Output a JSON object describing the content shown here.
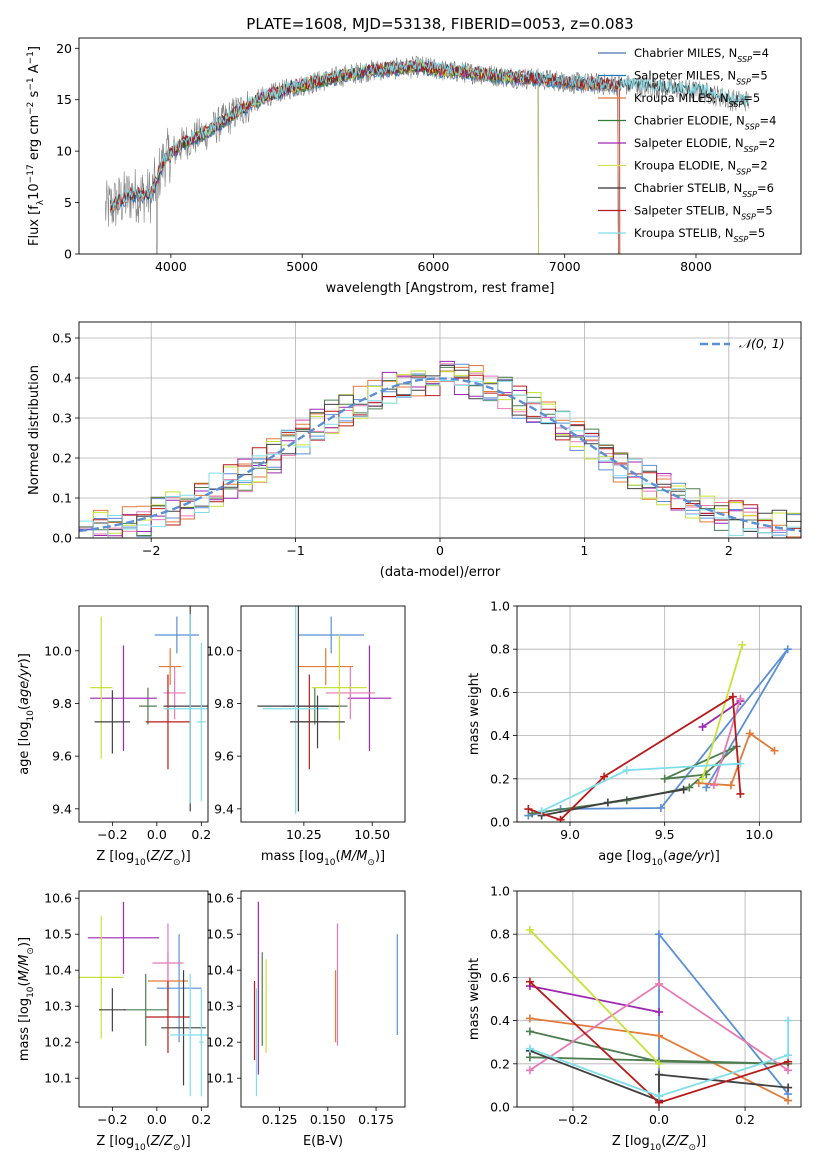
{
  "figure_title": "PLATE=1608, MJD=53138, FIBERID=0053, z=0.083",
  "colors": {
    "chabrier_miles": "#4c72b0",
    "salpeter_miles": "#1f77b4",
    "kroupa_miles": "#e07b39",
    "chabrier_elodie": "#2e7d32",
    "salpeter_elodie": "#9c27b0",
    "kroupa_elodie": "#d4e157",
    "chabrier_stelib": "#333333",
    "salpeter_stelib": "#b71c1c",
    "kroupa_stelib": "#80deea",
    "data": "#808080",
    "normal": "#5b8fd6",
    "panel_blue": "#5b8fd6",
    "panel_orange": "#e07b39",
    "panel_green": "#4e7d50",
    "panel_purple": "#9c27b0",
    "panel_pink": "#e67ab3",
    "panel_lime": "#c7e23b",
    "panel_dark": "#404040",
    "panel_red": "#b71c1c",
    "panel_cyan": "#80deea",
    "grid": "#b0b0b0"
  },
  "chart_data": [
    {
      "type": "line",
      "title": "PLATE=1608, MJD=53138, FIBERID=0053, z=0.083",
      "xlabel": "wavelength [Angstrom, rest frame]",
      "ylabel": "Flux [f_λ 10^-17 erg cm^-2 s^-1 A^-1]",
      "xlim": [
        3300,
        8800
      ],
      "ylim": [
        0,
        21
      ],
      "xticks": [
        "4000",
        "5000",
        "6000",
        "7000",
        "8000"
      ],
      "yticks": [
        "0",
        "5",
        "10",
        "15",
        "20"
      ],
      "grid": false,
      "legend": "right",
      "legend_entries": [
        {
          "base": "Chabrier MILES, N",
          "sub": "SSP",
          "tail": "=4"
        },
        {
          "base": "Salpeter MILES, N",
          "sub": "SSP",
          "tail": "=5"
        },
        {
          "base": "Kroupa MILES, N",
          "sub": "SSP",
          "tail": "=5"
        },
        {
          "base": "Chabrier ELODIE, N",
          "sub": "SSP",
          "tail": "=4"
        },
        {
          "base": "Salpeter ELODIE, N",
          "sub": "SSP",
          "tail": "=2"
        },
        {
          "base": "Kroupa ELODIE, N",
          "sub": "SSP",
          "tail": "=2"
        },
        {
          "base": "Chabrier STELIB, N",
          "sub": "SSP",
          "tail": "=6"
        },
        {
          "base": "Salpeter STELIB, N",
          "sub": "SSP",
          "tail": "=5"
        },
        {
          "base": "Kroupa STELIB, N",
          "sub": "SSP",
          "tail": "=5"
        }
      ],
      "continuum": [
        [
          3500,
          4.3
        ],
        [
          3700,
          5.8
        ],
        [
          3850,
          5.7
        ],
        [
          3950,
          9.2
        ],
        [
          4100,
          10.8
        ],
        [
          4300,
          12.0
        ],
        [
          4500,
          13.8
        ],
        [
          4700,
          15.2
        ],
        [
          4900,
          16.1
        ],
        [
          5100,
          16.7
        ],
        [
          5300,
          17.3
        ],
        [
          5500,
          17.8
        ],
        [
          5700,
          18.0
        ],
        [
          5900,
          18.2
        ],
        [
          6100,
          17.8
        ],
        [
          6300,
          17.6
        ],
        [
          6500,
          17.3
        ],
        [
          6700,
          17.1
        ],
        [
          6900,
          16.9
        ],
        [
          7100,
          16.6
        ],
        [
          7300,
          16.5
        ],
        [
          7500,
          16.4
        ],
        [
          7700,
          16.2
        ],
        [
          7900,
          16.0
        ],
        [
          8100,
          15.6
        ],
        [
          8300,
          14.9
        ]
      ]
    },
    {
      "type": "line",
      "xlabel": "(data-model)/error",
      "ylabel": "Normed distribution",
      "xlim": [
        -2.5,
        2.5
      ],
      "ylim": [
        0,
        0.54
      ],
      "xticks": [
        "−2",
        "−1",
        "0",
        "1",
        "2"
      ],
      "yticks": [
        "0.0",
        "0.1",
        "0.2",
        "0.3",
        "0.4",
        "0.5"
      ],
      "grid": true,
      "legend": "top-right",
      "legend_label": "𝒩(0, 1)",
      "histogram_bin_width": 0.1
    },
    {
      "type": "scatter",
      "xlabel": "Z [log10(Z/Z⊙)]",
      "ylabel": "age [log10(age/yr)]",
      "xlim": [
        -0.35,
        0.23
      ],
      "ylim": [
        9.35,
        10.17
      ],
      "xticks": [
        "−0.2",
        "0.0",
        "0.2"
      ],
      "yticks": [
        "9.4",
        "9.6",
        "9.8",
        "10.0"
      ],
      "grid": false,
      "points": [
        {
          "x": 0.09,
          "y": 10.06,
          "xerr": 0.1,
          "yerr": 0.07,
          "color": "panel_blue"
        },
        {
          "x": 0.06,
          "y": 9.94,
          "xerr": 0.05,
          "yerr": 0.07,
          "color": "panel_orange"
        },
        {
          "x": -0.04,
          "y": 9.79,
          "xerr": 0.04,
          "yerr": 0.07,
          "color": "panel_green"
        },
        {
          "x": -0.15,
          "y": 9.82,
          "xerr": 0.15,
          "yerr": 0.2,
          "color": "panel_purple"
        },
        {
          "x": 0.08,
          "y": 9.84,
          "xerr": 0.05,
          "yerr": 0.1,
          "color": "panel_pink"
        },
        {
          "x": -0.25,
          "y": 9.86,
          "xerr": 0.05,
          "yerr": 0.27,
          "color": "panel_lime"
        },
        {
          "x": 0.15,
          "y": 9.79,
          "xerr": 0.12,
          "yerr": 0.4,
          "color": "panel_dark"
        },
        {
          "x": 0.05,
          "y": 9.73,
          "xerr": 0.1,
          "yerr": 0.18,
          "color": "panel_red"
        },
        {
          "x": 0.15,
          "y": 9.78,
          "xerr": 0.12,
          "yerr": 0.36,
          "color": "panel_cyan"
        },
        {
          "x": -0.2,
          "y": 9.73,
          "xerr": 0.08,
          "yerr": 0.12,
          "color": "panel_dark"
        },
        {
          "x": 0.2,
          "y": 9.73,
          "xerr": 0.02,
          "yerr": 0.3,
          "color": "panel_cyan"
        }
      ]
    },
    {
      "type": "scatter",
      "xlabel": "mass [log10(M/M⊙)]",
      "ylabel": "",
      "xlim": [
        10.02,
        10.62
      ],
      "ylim": [
        9.35,
        10.17
      ],
      "xticks": [
        "10.25",
        "10.50"
      ],
      "yticks": [
        "9.4",
        "9.6",
        "9.8",
        "10.0"
      ],
      "grid": false,
      "points": [
        {
          "x": 10.35,
          "y": 10.06,
          "xerr": 0.12,
          "yerr": 0.07,
          "color": "panel_blue"
        },
        {
          "x": 10.33,
          "y": 9.94,
          "xerr": 0.1,
          "yerr": 0.07,
          "color": "panel_orange"
        },
        {
          "x": 10.29,
          "y": 9.79,
          "xerr": 0.12,
          "yerr": 0.07,
          "color": "panel_green"
        },
        {
          "x": 10.49,
          "y": 9.82,
          "xerr": 0.08,
          "yerr": 0.2,
          "color": "panel_purple"
        },
        {
          "x": 10.42,
          "y": 9.84,
          "xerr": 0.09,
          "yerr": 0.1,
          "color": "panel_pink"
        },
        {
          "x": 10.38,
          "y": 9.86,
          "xerr": 0.1,
          "yerr": 0.2,
          "color": "panel_lime"
        },
        {
          "x": 10.23,
          "y": 9.79,
          "xerr": 0.15,
          "yerr": 0.4,
          "color": "panel_dark"
        },
        {
          "x": 10.27,
          "y": 9.73,
          "xerr": 0.07,
          "yerr": 0.18,
          "color": "panel_red"
        },
        {
          "x": 10.22,
          "y": 9.78,
          "xerr": 0.12,
          "yerr": 0.4,
          "color": "panel_cyan"
        },
        {
          "x": 10.3,
          "y": 9.73,
          "xerr": 0.1,
          "yerr": 0.1,
          "color": "panel_dark"
        }
      ]
    },
    {
      "type": "line",
      "xlabel": "age [log10(age/yr)]",
      "ylabel": "mass weight",
      "xlim": [
        8.72,
        10.22
      ],
      "ylim": [
        0,
        1
      ],
      "xticks": [
        "9.0",
        "9.5",
        "10.0"
      ],
      "yticks": [
        "0.0",
        "0.2",
        "0.4",
        "0.6",
        "0.8",
        "1.0"
      ],
      "grid": true,
      "series": [
        {
          "color": "panel_blue",
          "x": [
            8.78,
            8.95,
            9.48,
            10.15,
            9.72
          ],
          "y": [
            0.03,
            0.06,
            0.065,
            0.8,
            0.16
          ]
        },
        {
          "color": "panel_orange",
          "x": [
            9.68,
            9.85,
            9.95,
            10.08
          ],
          "y": [
            0.18,
            0.17,
            0.41,
            0.33
          ]
        },
        {
          "color": "panel_green",
          "x": [
            8.8,
            9.3,
            9.63,
            9.88,
            9.5,
            9.72
          ],
          "y": [
            0.04,
            0.1,
            0.16,
            0.35,
            0.2,
            0.22
          ]
        },
        {
          "color": "panel_purple",
          "x": [
            9.7,
            9.9
          ],
          "y": [
            0.44,
            0.56
          ]
        },
        {
          "color": "panel_pink",
          "x": [
            9.76,
            9.9
          ],
          "y": [
            0.17,
            0.57
          ]
        },
        {
          "color": "panel_lime",
          "x": [
            9.7,
            9.91
          ],
          "y": [
            0.2,
            0.82
          ]
        },
        {
          "color": "panel_dark",
          "x": [
            8.85,
            9.2,
            9.6
          ],
          "y": [
            0.03,
            0.09,
            0.15
          ]
        },
        {
          "color": "panel_red",
          "x": [
            8.78,
            8.95,
            9.18,
            9.86,
            9.9
          ],
          "y": [
            0.06,
            0.01,
            0.21,
            0.58,
            0.13
          ]
        },
        {
          "color": "panel_cyan",
          "x": [
            8.85,
            9.3,
            9.9
          ],
          "y": [
            0.05,
            0.24,
            0.27
          ]
        }
      ]
    },
    {
      "type": "scatter",
      "xlabel": "Z [log10(Z/Z⊙)]",
      "ylabel": "mass [log10(M/M⊙)]",
      "xlim": [
        -0.35,
        0.23
      ],
      "ylim": [
        10.02,
        10.62
      ],
      "xticks": [
        "−0.2",
        "0.0",
        "0.2"
      ],
      "yticks": [
        "10.1",
        "10.2",
        "10.3",
        "10.4",
        "10.5",
        "10.6"
      ],
      "grid": false,
      "points": [
        {
          "x": 0.1,
          "y": 10.35,
          "xerr": 0.1,
          "yerr": 0.15,
          "color": "panel_blue"
        },
        {
          "x": 0.05,
          "y": 10.37,
          "xerr": 0.09,
          "yerr": 0.08,
          "color": "panel_orange"
        },
        {
          "x": -0.05,
          "y": 10.29,
          "xerr": 0.1,
          "yerr": 0.1,
          "color": "panel_green"
        },
        {
          "x": -0.15,
          "y": 10.49,
          "xerr": 0.16,
          "yerr": 0.1,
          "color": "panel_purple"
        },
        {
          "x": 0.05,
          "y": 10.42,
          "xerr": 0.07,
          "yerr": 0.11,
          "color": "panel_pink"
        },
        {
          "x": -0.25,
          "y": 10.38,
          "xerr": 0.1,
          "yerr": 0.17,
          "color": "panel_lime"
        },
        {
          "x": 0.12,
          "y": 10.24,
          "xerr": 0.1,
          "yerr": 0.16,
          "color": "panel_dark"
        },
        {
          "x": 0.05,
          "y": 10.27,
          "xerr": 0.1,
          "yerr": 0.1,
          "color": "panel_red"
        },
        {
          "x": 0.15,
          "y": 10.22,
          "xerr": 0.09,
          "yerr": 0.17,
          "color": "panel_cyan"
        },
        {
          "x": -0.2,
          "y": 10.29,
          "xerr": 0.06,
          "yerr": 0.06,
          "color": "panel_dark"
        },
        {
          "x": 0.2,
          "y": 10.2,
          "xerr": 0.01,
          "yerr": 0.15,
          "color": "panel_cyan"
        }
      ]
    },
    {
      "type": "scatter",
      "xlabel": "E(B-V)",
      "ylabel": "",
      "xlim": [
        0.105,
        0.19
      ],
      "ylim": [
        10.02,
        10.62
      ],
      "xticks": [
        "0.125",
        "0.150",
        "0.175"
      ],
      "yticks": [
        "10.1",
        "10.2",
        "10.3",
        "10.4",
        "10.5",
        "10.6"
      ],
      "grid": false,
      "points": [
        {
          "x": 0.112,
          "y": 10.26,
          "yerr": 0.11,
          "color": "panel_red"
        },
        {
          "x": 0.114,
          "y": 10.35,
          "yerr": 0.24,
          "color": "panel_purple"
        },
        {
          "x": 0.116,
          "y": 10.32,
          "yerr": 0.13,
          "color": "panel_green"
        },
        {
          "x": 0.118,
          "y": 10.3,
          "yerr": 0.13,
          "color": "panel_lime"
        },
        {
          "x": 0.113,
          "y": 10.2,
          "yerr": 0.15,
          "color": "panel_cyan"
        },
        {
          "x": 0.155,
          "y": 10.36,
          "yerr": 0.17,
          "color": "panel_pink"
        },
        {
          "x": 0.154,
          "y": 10.3,
          "yerr": 0.1,
          "color": "panel_orange"
        },
        {
          "x": 0.186,
          "y": 10.36,
          "yerr": 0.14,
          "color": "panel_blue"
        }
      ]
    },
    {
      "type": "line",
      "xlabel": "Z [log10(Z/Z⊙)]",
      "ylabel": "mass weight",
      "xlim": [
        -0.33,
        0.33
      ],
      "ylim": [
        0,
        1
      ],
      "xticks": [
        "−0.2",
        "0.0",
        "0.2"
      ],
      "yticks": [
        "0.0",
        "0.2",
        "0.4",
        "0.6",
        "0.8",
        "1.0"
      ],
      "grid": true,
      "series": [
        {
          "color": "panel_blue",
          "x": [
            0.0,
            0.0,
            0.3
          ],
          "y": [
            0.03,
            0.8,
            0.06
          ]
        },
        {
          "color": "panel_orange",
          "x": [
            -0.3,
            0.0,
            0.3
          ],
          "y": [
            0.41,
            0.33,
            0.03
          ]
        },
        {
          "color": "panel_green",
          "x": [
            -0.3,
            0.0,
            0.3,
            -0.3
          ],
          "y": [
            0.35,
            0.21,
            0.2,
            0.23
          ]
        },
        {
          "color": "panel_purple",
          "x": [
            -0.3,
            0.0
          ],
          "y": [
            0.56,
            0.44
          ]
        },
        {
          "color": "panel_pink",
          "x": [
            -0.3,
            0.0,
            0.3
          ],
          "y": [
            0.17,
            0.57,
            0.17
          ]
        },
        {
          "color": "panel_lime",
          "x": [
            -0.3,
            0.0
          ],
          "y": [
            0.82,
            0.2
          ]
        },
        {
          "color": "panel_dark",
          "x": [
            -0.3,
            0.0,
            0.0,
            0.3
          ],
          "y": [
            0.26,
            0.03,
            0.15,
            0.09
          ]
        },
        {
          "color": "panel_red",
          "x": [
            -0.3,
            0.0,
            0.3
          ],
          "y": [
            0.58,
            0.02,
            0.21
          ]
        },
        {
          "color": "panel_cyan",
          "x": [
            -0.3,
            0.0,
            0.3,
            0.3
          ],
          "y": [
            0.27,
            0.05,
            0.24,
            0.4
          ]
        }
      ]
    }
  ]
}
